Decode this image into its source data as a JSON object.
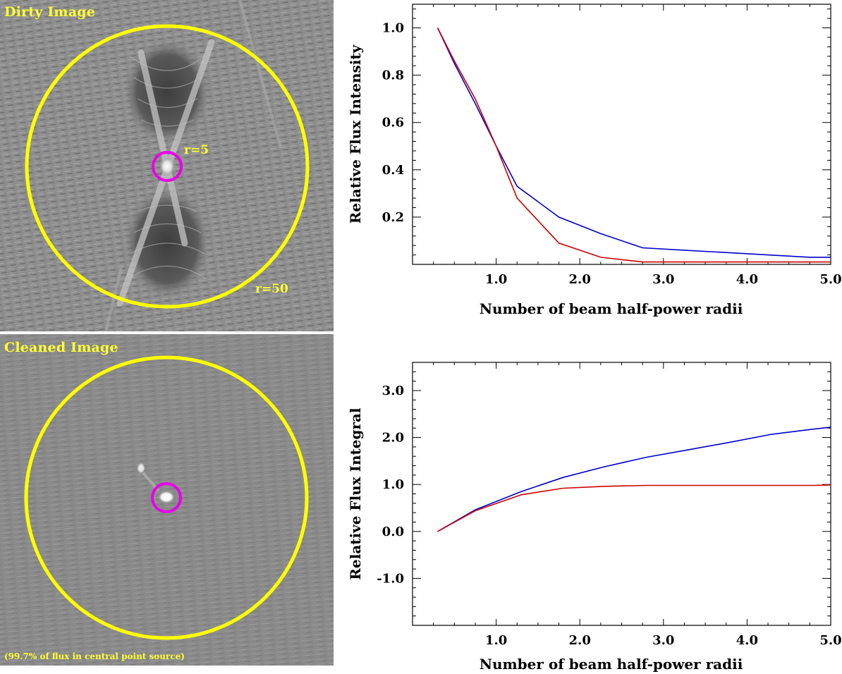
{
  "dirty_image": {
    "title": "Dirty Image",
    "inner_label": "r=5",
    "outer_label": "r=50",
    "outer_circle_color": "#ffff00",
    "inner_circle_color": "#e800e8"
  },
  "cleaned_image": {
    "title": "Cleaned Image",
    "caption": "(99.7% of flux in central point source)",
    "outer_circle_color": "#ffff00",
    "inner_circle_color": "#e800e8"
  },
  "chart_data": [
    {
      "type": "line",
      "xlabel": "Number of beam half-power radii",
      "ylabel": "Relative Flux Intensity",
      "xlim": [
        0.0,
        5.0
      ],
      "ylim": [
        0.0,
        1.1
      ],
      "xticks": [
        1.0,
        2.0,
        3.0,
        4.0,
        5.0
      ],
      "xtick_labels": [
        "1.0",
        "2.0",
        "3.0",
        "4.0",
        "5.0"
      ],
      "yticks": [
        0.2,
        0.4,
        0.6,
        0.8,
        1.0
      ],
      "ytick_labels": [
        "0.2",
        "0.4",
        "0.6",
        "0.8",
        "1.0"
      ],
      "series": [
        {
          "color": "#0000cc",
          "x": [
            0.3,
            0.5,
            0.75,
            1.0,
            1.25,
            1.75,
            2.25,
            2.75,
            3.25,
            3.75,
            4.25,
            4.75,
            5.0
          ],
          "values": [
            1.0,
            0.85,
            0.68,
            0.5,
            0.33,
            0.2,
            0.13,
            0.07,
            0.06,
            0.05,
            0.04,
            0.03,
            0.03
          ]
        },
        {
          "color": "#cc0000",
          "x": [
            0.3,
            0.5,
            0.75,
            1.0,
            1.25,
            1.75,
            2.25,
            2.75,
            3.25,
            3.75,
            4.25,
            4.75,
            5.0
          ],
          "values": [
            1.0,
            0.86,
            0.7,
            0.5,
            0.28,
            0.09,
            0.03,
            0.01,
            0.01,
            0.01,
            0.01,
            0.01,
            0.01
          ]
        }
      ]
    },
    {
      "type": "line",
      "xlabel": "Number of beam half-power radii",
      "ylabel": "Relative Flux Integral",
      "xlim": [
        0.0,
        5.0
      ],
      "ylim": [
        -2.0,
        3.6
      ],
      "xticks": [
        1.0,
        2.0,
        3.0,
        4.0,
        5.0
      ],
      "xtick_labels": [
        "1.0",
        "2.0",
        "3.0",
        "4.0",
        "5.0"
      ],
      "yticks": [
        -1.0,
        0.0,
        1.0,
        2.0,
        3.0
      ],
      "ytick_labels": [
        "-1.0",
        "0.0",
        "1.0",
        "2.0",
        "3.0"
      ],
      "series": [
        {
          "color": "#0000cc",
          "x": [
            0.3,
            0.75,
            1.3,
            1.8,
            2.3,
            2.8,
            3.3,
            3.8,
            4.3,
            4.8,
            5.0
          ],
          "values": [
            0.0,
            0.46,
            0.85,
            1.15,
            1.38,
            1.58,
            1.74,
            1.9,
            2.07,
            2.18,
            2.22
          ]
        },
        {
          "color": "#cc0000",
          "x": [
            0.3,
            0.75,
            1.3,
            1.8,
            2.3,
            2.8,
            3.3,
            3.8,
            4.3,
            4.8,
            5.0
          ],
          "values": [
            0.0,
            0.44,
            0.78,
            0.92,
            0.96,
            0.98,
            0.98,
            0.98,
            0.98,
            0.98,
            0.99
          ]
        }
      ]
    }
  ]
}
